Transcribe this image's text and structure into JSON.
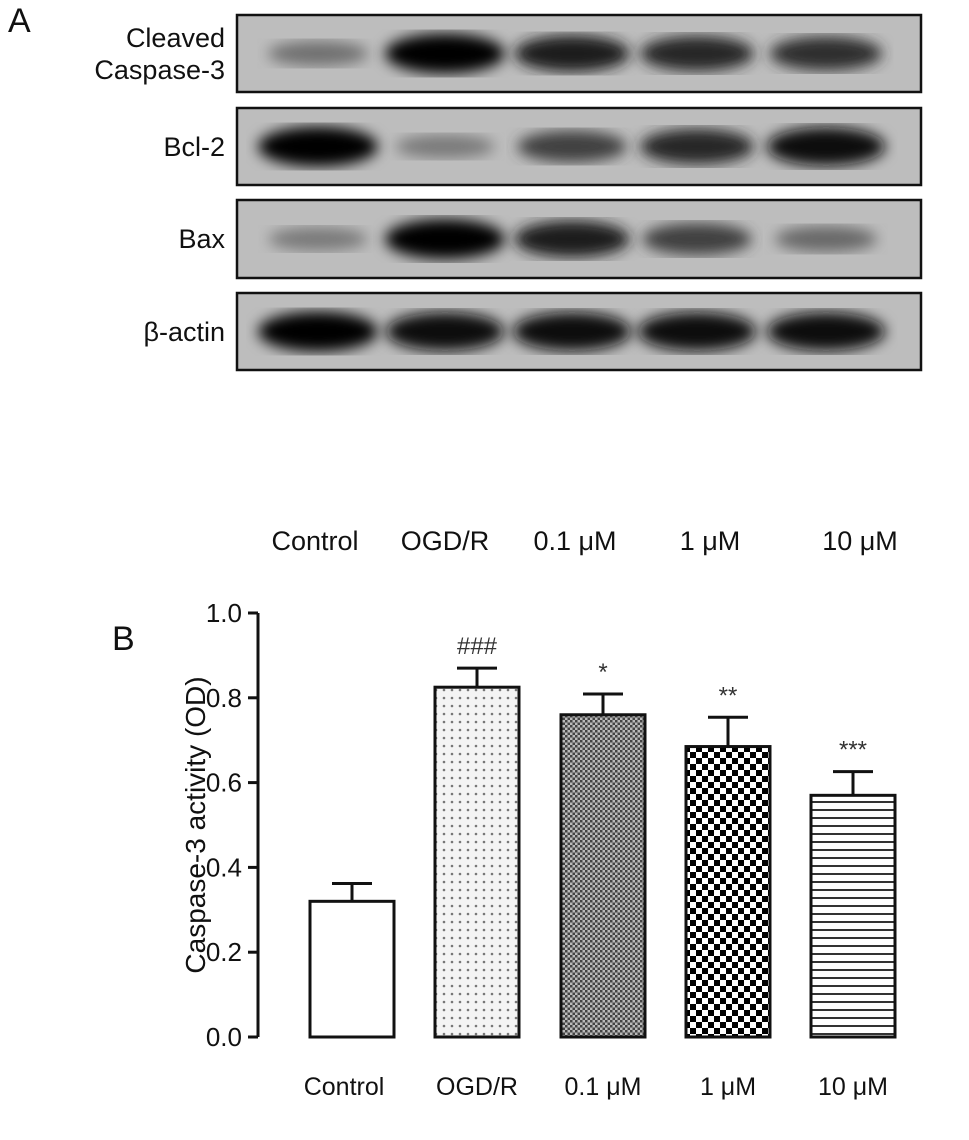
{
  "panel_a": {
    "letter": "A",
    "rows": [
      {
        "label_lines": [
          "Cleaved",
          "Caspase-3"
        ],
        "band_intensity": [
          0.35,
          1.0,
          0.85,
          0.8,
          0.75
        ]
      },
      {
        "label_lines": [
          "Bcl-2"
        ],
        "band_intensity": [
          1.0,
          0.3,
          0.65,
          0.8,
          0.95
        ]
      },
      {
        "label_lines": [
          "Bax"
        ],
        "band_intensity": [
          0.3,
          1.0,
          0.85,
          0.65,
          0.4
        ]
      },
      {
        "label_lines": [
          "β-actin"
        ],
        "band_intensity": [
          1.0,
          0.95,
          0.95,
          0.95,
          0.95
        ]
      }
    ],
    "lanes": [
      "Control",
      "OGD/R",
      "0.1 μM",
      "1 μM",
      "10 μM"
    ]
  },
  "chart_data": {
    "type": "bar",
    "panel_letter": "B",
    "categories": [
      "Control",
      "OGD/R",
      "0.1 μM",
      "1 μM",
      "10 μM"
    ],
    "values": [
      0.32,
      0.825,
      0.76,
      0.685,
      0.57
    ],
    "error_upper": [
      0.362,
      0.87,
      0.809,
      0.754,
      0.626
    ],
    "annotations": [
      "",
      "###",
      "*",
      "**",
      "***"
    ],
    "fill_patterns": [
      "white",
      "dots",
      "fine-checker",
      "checker",
      "horizontal-lines"
    ],
    "ylabel": "Caspase-3 activity (OD)",
    "xlabel": "",
    "ylim": [
      0,
      1.0
    ],
    "yticks": [
      "0.0",
      "0.2",
      "0.4",
      "0.6",
      "0.8",
      "1.0"
    ],
    "grid": false
  }
}
